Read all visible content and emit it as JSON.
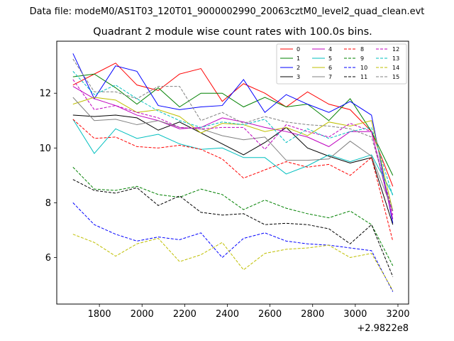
{
  "figure": {
    "suptitle": "Data file: modeM0/AS1T03_120T01_9000002990_20063cztM0_level2_quad_clean.evt"
  },
  "chart_data": {
    "type": "line",
    "title": "Quadrant 2 module wise count rates with 100.0s bins.",
    "xlabel": "",
    "ylabel": "",
    "x_offset_label": "+2.9822e8",
    "x": [
      1676,
      1776,
      1876,
      1976,
      2076,
      2176,
      2276,
      2376,
      2476,
      2576,
      2676,
      2776,
      2876,
      2976,
      3076,
      3176
    ],
    "xlim": [
      1600,
      3250
    ],
    "ylim": [
      4.3,
      13.9
    ],
    "xticks": [
      1800,
      2000,
      2200,
      2400,
      2600,
      2800,
      3000,
      3200
    ],
    "xtick_labels": [
      "1800",
      "2000",
      "2200",
      "2400",
      "2600",
      "2800",
      "3000",
      "3200"
    ],
    "yticks": [
      6,
      8,
      10,
      12
    ],
    "ytick_labels": [
      "6",
      "8",
      "10",
      "12"
    ],
    "legend_location": "top-right",
    "legend_columns": 4,
    "series": [
      {
        "name": "0",
        "color": "#ff0000",
        "dash": "solid",
        "values": [
          12.3,
          12.7,
          13.1,
          12.3,
          12.1,
          12.7,
          12.9,
          11.7,
          12.35,
          12.0,
          11.5,
          12.05,
          11.6,
          11.4,
          10.6,
          8.6
        ]
      },
      {
        "name": "1",
        "color": "#008000",
        "dash": "solid",
        "values": [
          12.6,
          12.7,
          12.2,
          11.6,
          12.2,
          11.5,
          12.0,
          12.0,
          11.5,
          11.85,
          11.5,
          11.6,
          11.0,
          11.8,
          10.6,
          9.0
        ]
      },
      {
        "name": "2",
        "color": "#0000ff",
        "dash": "solid",
        "values": [
          13.45,
          11.8,
          13.0,
          12.8,
          11.55,
          11.4,
          11.5,
          11.55,
          12.5,
          11.3,
          11.95,
          11.6,
          11.3,
          11.7,
          11.2,
          7.25
        ]
      },
      {
        "name": "3",
        "color": "#000000",
        "dash": "solid",
        "values": [
          11.2,
          11.15,
          11.2,
          11.1,
          10.65,
          10.95,
          10.55,
          10.15,
          9.75,
          10.2,
          10.75,
          10.0,
          9.7,
          9.45,
          9.65,
          7.2
        ]
      },
      {
        "name": "4",
        "color": "#bf00bf",
        "dash": "solid",
        "values": [
          12.25,
          11.8,
          11.55,
          11.2,
          11.0,
          10.7,
          10.75,
          11.1,
          10.95,
          10.75,
          10.6,
          10.4,
          10.05,
          10.6,
          10.6,
          7.4
        ]
      },
      {
        "name": "5",
        "color": "#00bfbf",
        "dash": "solid",
        "values": [
          11.05,
          9.8,
          10.7,
          10.35,
          10.5,
          10.15,
          9.95,
          10.0,
          9.65,
          9.65,
          9.05,
          9.35,
          9.75,
          9.5,
          9.75,
          8.3
        ]
      },
      {
        "name": "6",
        "color": "#bfbf00",
        "dash": "solid",
        "values": [
          11.6,
          11.85,
          11.75,
          11.3,
          11.4,
          11.15,
          10.55,
          10.9,
          10.85,
          10.6,
          10.75,
          10.45,
          10.95,
          10.8,
          11.0,
          7.7
        ]
      },
      {
        "name": "7",
        "color": "#808080",
        "dash": "solid",
        "values": [
          11.85,
          11.0,
          11.05,
          10.85,
          11.0,
          10.75,
          10.7,
          10.45,
          10.3,
          10.4,
          9.55,
          9.55,
          9.6,
          10.25,
          9.7,
          7.7
        ]
      },
      {
        "name": "8",
        "color": "#ff0000",
        "dash": "dashed",
        "values": [
          11.05,
          10.35,
          10.4,
          10.05,
          10.0,
          10.1,
          9.95,
          9.6,
          8.9,
          9.2,
          9.5,
          9.3,
          9.4,
          9.0,
          9.65,
          6.6
        ]
      },
      {
        "name": "9",
        "color": "#008000",
        "dash": "dashed",
        "values": [
          9.3,
          8.5,
          8.45,
          8.6,
          8.3,
          8.2,
          8.5,
          8.3,
          7.75,
          8.1,
          7.8,
          7.6,
          7.45,
          7.7,
          7.2,
          5.7
        ]
      },
      {
        "name": "10",
        "color": "#0000ff",
        "dash": "dashed",
        "values": [
          8.0,
          7.2,
          6.85,
          6.6,
          6.75,
          6.65,
          6.9,
          6.0,
          6.7,
          6.9,
          6.6,
          6.5,
          6.45,
          6.35,
          6.25,
          4.75
        ]
      },
      {
        "name": "11",
        "color": "#000000",
        "dash": "dashed",
        "values": [
          8.85,
          8.45,
          8.35,
          8.55,
          7.9,
          8.25,
          7.65,
          7.55,
          7.6,
          7.2,
          7.25,
          7.2,
          7.05,
          6.5,
          7.2,
          5.3
        ]
      },
      {
        "name": "12",
        "color": "#bf00bf",
        "dash": "dashed",
        "values": [
          12.5,
          11.4,
          11.55,
          11.3,
          11.1,
          10.75,
          10.7,
          10.75,
          10.75,
          9.95,
          10.85,
          10.6,
          10.4,
          10.9,
          10.6,
          7.55
        ]
      },
      {
        "name": "13",
        "color": "#00bfbf",
        "dash": "dashed",
        "values": [
          12.8,
          11.95,
          12.3,
          11.8,
          11.35,
          11.0,
          10.75,
          10.95,
          10.85,
          11.05,
          10.2,
          10.7,
          10.35,
          10.6,
          10.75,
          8.25
        ]
      },
      {
        "name": "14",
        "color": "#bfbf00",
        "dash": "dashed",
        "values": [
          6.85,
          6.55,
          6.05,
          6.5,
          6.7,
          5.85,
          6.1,
          6.55,
          5.55,
          6.15,
          6.3,
          6.35,
          6.45,
          6.0,
          6.15,
          4.8
        ]
      },
      {
        "name": "15",
        "color": "#808080",
        "dash": "dashed",
        "values": [
          13.25,
          12.05,
          12.05,
          11.8,
          12.25,
          12.25,
          11.0,
          11.3,
          10.9,
          11.15,
          10.95,
          10.85,
          10.8,
          10.7,
          10.4,
          7.7
        ]
      }
    ]
  }
}
